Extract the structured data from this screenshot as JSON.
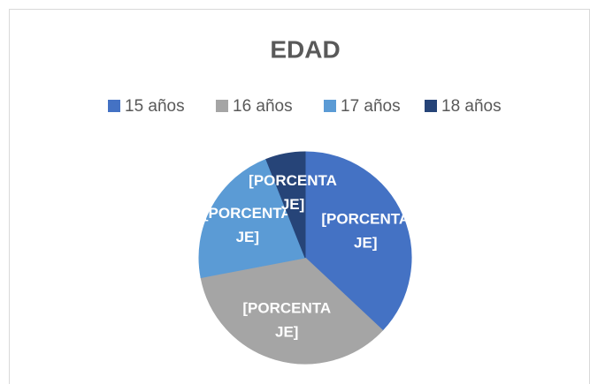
{
  "chart_data": {
    "type": "pie",
    "title": "EDAD",
    "categories": [
      "15 años",
      "16 años",
      "17 años",
      "18 años"
    ],
    "values": [
      37,
      35,
      22,
      6
    ],
    "value_labels": [
      "[PORCENTAJE]",
      "[PORCENTAJE]",
      "[PORCENTAJE]",
      "[PORCENTAJE]"
    ],
    "colors": [
      "#4472c4",
      "#a5a5a5",
      "#5b9bd5",
      "#264478"
    ],
    "legend": "top"
  }
}
